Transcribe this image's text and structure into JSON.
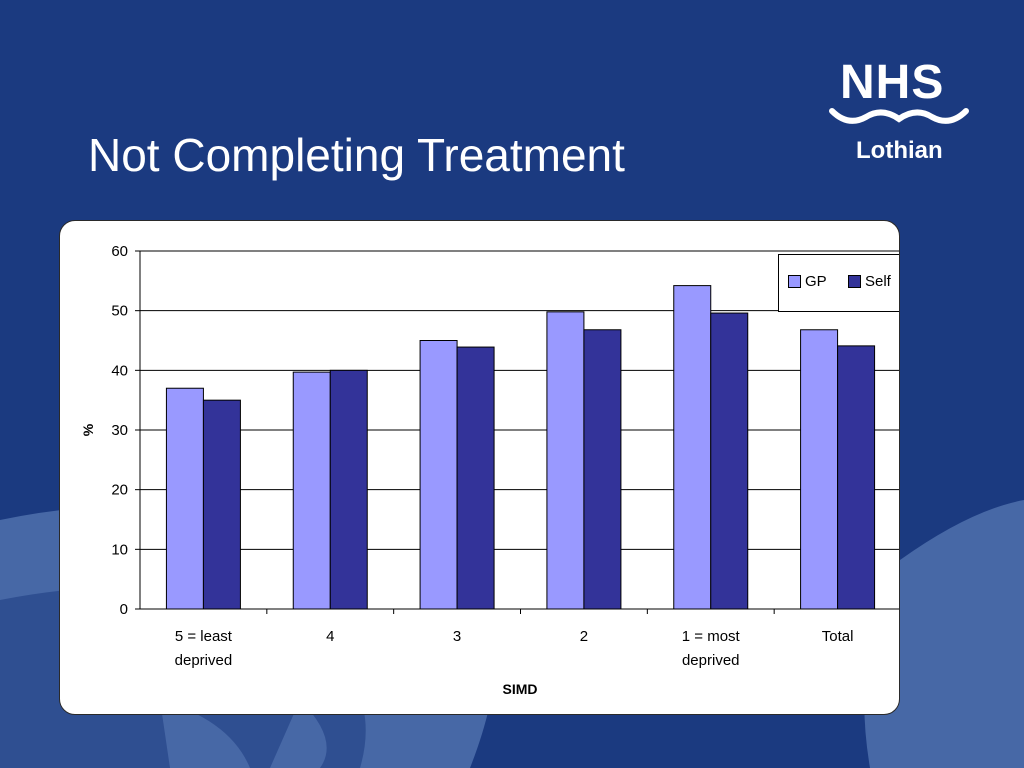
{
  "slide": {
    "title": "Not Completing Treatment"
  },
  "logo": {
    "name": "NHS",
    "sub": "Lothian"
  },
  "colors": {
    "background": "#1b3a80",
    "accent_light": "#4a6aa8",
    "gp": "#9999ff",
    "self": "#333399"
  },
  "chart_data": {
    "type": "bar",
    "categories": [
      [
        "5 = least",
        "deprived"
      ],
      [
        "4"
      ],
      [
        "3"
      ],
      [
        "2"
      ],
      [
        "1 = most",
        "deprived"
      ],
      [
        "Total"
      ]
    ],
    "series": [
      {
        "name": "GP",
        "values": [
          37,
          39.7,
          45,
          49.8,
          54.2,
          46.8
        ]
      },
      {
        "name": "Self",
        "values": [
          35,
          40,
          43.9,
          46.8,
          49.6,
          44.1
        ]
      }
    ],
    "xlabel": "SIMD",
    "ylabel": "%",
    "ylim": [
      0,
      60
    ],
    "yticks": [
      0,
      10,
      20,
      30,
      40,
      50,
      60
    ],
    "grid": true,
    "legend_position": "top-right"
  }
}
